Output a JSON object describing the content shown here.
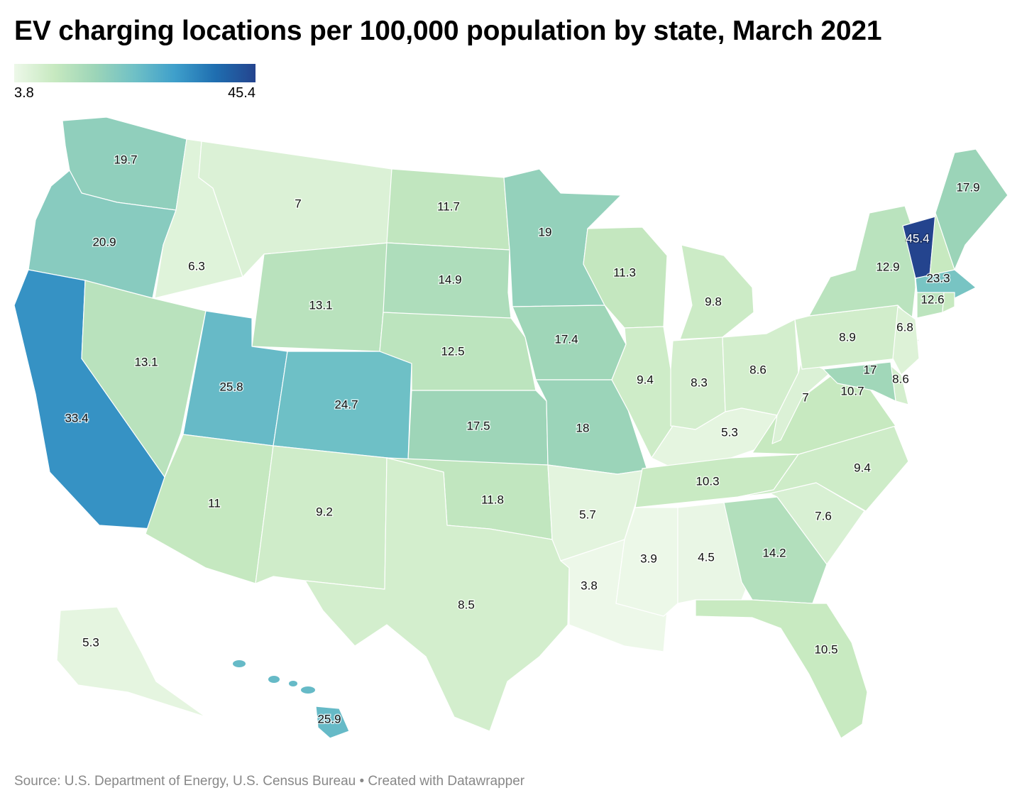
{
  "title": "EV charging locations per 100,000 population by state, March 2021",
  "legend": {
    "min_label": "3.8",
    "max_label": "45.4",
    "colors": [
      "#edf8e9",
      "#c7e9c0",
      "#9dd5b8",
      "#6fc0c6",
      "#3e9fcb",
      "#1f6eb0",
      "#24448e"
    ]
  },
  "source": "Source: U.S. Department of Energy, U.S. Census Bureau • Created with Datawrapper",
  "chart_data": {
    "type": "choropleth",
    "metric": "EV charging locations per 100,000 population",
    "range": [
      3.8,
      45.4
    ],
    "values": [
      {
        "state": "WA",
        "value": 19.7
      },
      {
        "state": "OR",
        "value": 20.9
      },
      {
        "state": "CA",
        "value": 33.4
      },
      {
        "state": "ID",
        "value": 6.3
      },
      {
        "state": "NV",
        "value": 13.1
      },
      {
        "state": "MT",
        "value": 7
      },
      {
        "state": "WY",
        "value": 13.1
      },
      {
        "state": "UT",
        "value": 25.8
      },
      {
        "state": "CO",
        "value": 24.7
      },
      {
        "state": "AZ",
        "value": 11
      },
      {
        "state": "NM",
        "value": 9.2
      },
      {
        "state": "ND",
        "value": 11.7
      },
      {
        "state": "SD",
        "value": 14.9
      },
      {
        "state": "NE",
        "value": 12.5
      },
      {
        "state": "KS",
        "value": 17.5
      },
      {
        "state": "OK",
        "value": 11.8
      },
      {
        "state": "TX",
        "value": 8.5
      },
      {
        "state": "MN",
        "value": 19
      },
      {
        "state": "IA",
        "value": 17.4
      },
      {
        "state": "MO",
        "value": 18
      },
      {
        "state": "AR",
        "value": 5.7
      },
      {
        "state": "LA",
        "value": 3.8
      },
      {
        "state": "WI",
        "value": 11.3
      },
      {
        "state": "IL",
        "value": 9.4
      },
      {
        "state": "MI",
        "value": 9.8
      },
      {
        "state": "IN",
        "value": 8.3
      },
      {
        "state": "OH",
        "value": 8.6
      },
      {
        "state": "KY",
        "value": 5.3
      },
      {
        "state": "TN",
        "value": 10.3
      },
      {
        "state": "MS",
        "value": 3.9
      },
      {
        "state": "AL",
        "value": 4.5
      },
      {
        "state": "GA",
        "value": 14.2
      },
      {
        "state": "FL",
        "value": 10.5
      },
      {
        "state": "SC",
        "value": 7.6
      },
      {
        "state": "NC",
        "value": 9.4
      },
      {
        "state": "VA",
        "value": 10.7
      },
      {
        "state": "WV",
        "value": 7
      },
      {
        "state": "PA",
        "value": 8.9
      },
      {
        "state": "NY",
        "value": 12.9
      },
      {
        "state": "VT",
        "value": 45.4
      },
      {
        "state": "NH",
        "value": null
      },
      {
        "state": "ME",
        "value": 17.9
      },
      {
        "state": "MA",
        "value": 23.3
      },
      {
        "state": "CT",
        "value": 12.6
      },
      {
        "state": "RI",
        "value": null
      },
      {
        "state": "NJ",
        "value": 6.8
      },
      {
        "state": "DE",
        "value": 8.6
      },
      {
        "state": "MD",
        "value": 17
      },
      {
        "state": "DC",
        "value": null
      },
      {
        "state": "AK",
        "value": 5.3
      },
      {
        "state": "HI",
        "value": 25.9
      }
    ]
  }
}
